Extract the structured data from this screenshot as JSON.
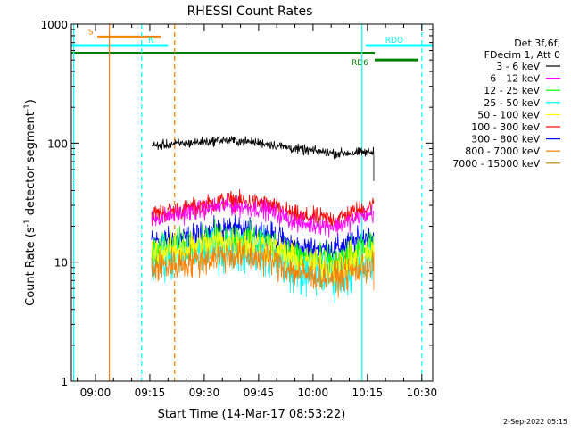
{
  "chart_data": {
    "type": "line",
    "title": "RHESSI Count Rates",
    "xlabel": "Start Time (14-Mar-17 08:53:22)",
    "ylabel_main": "Count Rate (s",
    "ylabel_sup": "-1",
    "ylabel_tail": " detector segment",
    "ylabel_sup2": "-1",
    "ylabel_close": ")",
    "y_scale": "log",
    "ylim": [
      1,
      1000
    ],
    "xlim": [
      "08:53:22",
      "10:33:00"
    ],
    "x_ticks": [
      "09:00",
      "09:15",
      "09:30",
      "09:45",
      "10:00",
      "10:15",
      "10:30"
    ],
    "y_ticks": [
      "1",
      "10",
      "100",
      "1000"
    ],
    "legend_header": [
      "Det 3f,6f,",
      "FDecim 1, Att 0"
    ],
    "series": [
      {
        "name": "3 - 6 keV",
        "color": "#000000",
        "start": "09:15:30",
        "end": "10:16:45",
        "level": [
          95,
          100,
          106,
          100,
          88,
          82,
          84
        ],
        "noise": 0.035
      },
      {
        "name": "6 - 12 keV",
        "color": "#ff00ff",
        "start": "09:15:30",
        "end": "10:16:45",
        "level": [
          23,
          26,
          30,
          28,
          21,
          20,
          26
        ],
        "noise": 0.07
      },
      {
        "name": "12 - 25 keV",
        "color": "#00ff00",
        "start": "09:15:30",
        "end": "10:16:45",
        "level": [
          13,
          14,
          16,
          15,
          11,
          10,
          13
        ],
        "noise": 0.12
      },
      {
        "name": "25 - 50 keV",
        "color": "#00ffff",
        "start": "09:15:30",
        "end": "10:16:45",
        "level": [
          10,
          11,
          13,
          12,
          8,
          7.5,
          10
        ],
        "noise": 0.16
      },
      {
        "name": "50 - 100 keV",
        "color": "#ffff00",
        "start": "09:15:30",
        "end": "10:16:45",
        "level": [
          12,
          13,
          15,
          14,
          10,
          9,
          12
        ],
        "noise": 0.12
      },
      {
        "name": "100 - 300 keV",
        "color": "#ff0000",
        "start": "09:15:30",
        "end": "10:16:45",
        "level": [
          25,
          28,
          33,
          31,
          24,
          23,
          30
        ],
        "noise": 0.07
      },
      {
        "name": "300 - 800 keV",
        "color": "#0000ff",
        "start": "09:15:30",
        "end": "10:16:45",
        "level": [
          15,
          16,
          19,
          18,
          13,
          13,
          17
        ],
        "noise": 0.09
      },
      {
        "name": "800 - 7000 keV",
        "color": "#ff8000",
        "start": "09:15:30",
        "end": "10:16:45",
        "level": [
          9,
          10,
          11.5,
          11,
          8,
          7.5,
          9.5
        ],
        "noise": 0.12
      },
      {
        "name": "7000 - 15000 keV",
        "color": "#b8860b",
        "start": "09:15:30",
        "end": "10:16:45",
        "level": [],
        "noise": 0
      }
    ],
    "flags": [
      {
        "label": "S",
        "color": "#ff8000",
        "start": "09:00:30",
        "end": "09:18:00",
        "y": 780
      },
      {
        "label": "N",
        "color": "#00ffff",
        "start": "08:53:22",
        "end": "09:20:00",
        "y": 660
      },
      {
        "label": "RDO",
        "color": "#00ffff",
        "start": "10:14:30",
        "end": "10:33:00",
        "y": 660
      },
      {
        "label": "",
        "color": "#008000",
        "start": "08:53:22",
        "end": "10:17:00",
        "y": 570
      },
      {
        "label": "RD6",
        "color": "#008000",
        "start": "10:17:00",
        "end": "10:29:00",
        "y": 500
      }
    ],
    "vlines": [
      {
        "t": "08:54:00",
        "color": "#00ffff",
        "style": "solid"
      },
      {
        "t": "09:03:50",
        "color": "#ff8000",
        "style": "solid"
      },
      {
        "t": "09:12:45",
        "color": "#00ffff",
        "style": "dashed"
      },
      {
        "t": "09:21:50",
        "color": "#ff8000",
        "style": "dashed"
      },
      {
        "t": "10:13:30",
        "color": "#00ffff",
        "style": "solid"
      },
      {
        "t": "10:30:00",
        "color": "#00ffff",
        "style": "dashed"
      }
    ],
    "footer": "2-Sep-2022 05:15"
  }
}
